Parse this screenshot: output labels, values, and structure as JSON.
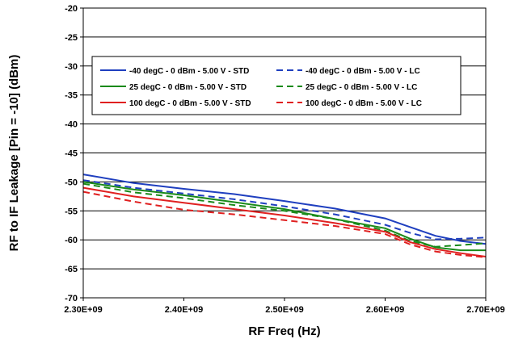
{
  "chart_data": {
    "type": "line",
    "title": "",
    "xlabel": "RF Freq (Hz)",
    "ylabel": "RF to IF Leakage [Pin = -10] (dBm)",
    "xlim": [
      2300000000,
      2700000000
    ],
    "ylim": [
      -70,
      -20
    ],
    "x_tick_labels": [
      "2.30E+09",
      "2.40E+09",
      "2.50E+09",
      "2.60E+09",
      "2.70E+09"
    ],
    "y_tick_labels": [
      "-20",
      "-25",
      "-30",
      "-35",
      "-40",
      "-45",
      "-50",
      "-55",
      "-60",
      "-65",
      "-70"
    ],
    "grid": "horizontal",
    "legend_position": "upper-center",
    "x": [
      2300000000,
      2350000000,
      2400000000,
      2450000000,
      2500000000,
      2550000000,
      2600000000,
      2625000000,
      2650000000,
      2675000000,
      2700000000
    ],
    "series": [
      {
        "name": "-40 degC - 0 dBm - 5.00 V - STD",
        "color": "#1f3fbf",
        "dash": "solid",
        "values": [
          -48.7,
          -50.2,
          -51.2,
          -52.1,
          -53.3,
          -54.6,
          -56.3,
          -57.8,
          -59.3,
          -60.2,
          -60.7
        ]
      },
      {
        "name": "-40 degC - 0 dBm - 5.00 V - LC",
        "color": "#1f3fbf",
        "dash": "dashed",
        "values": [
          -49.7,
          -51.0,
          -52.0,
          -53.0,
          -54.2,
          -55.6,
          -57.4,
          -58.8,
          -59.9,
          -59.8,
          -59.6
        ]
      },
      {
        "name": "25 degC - 0 dBm - 5.00 V - STD",
        "color": "#1a8a1a",
        "dash": "solid",
        "values": [
          -50.0,
          -51.3,
          -52.3,
          -53.5,
          -54.7,
          -56.4,
          -58.0,
          -59.8,
          -61.3,
          -61.8,
          -61.8
        ]
      },
      {
        "name": "25 degC - 0 dBm - 5.00 V - LC",
        "color": "#1a8a1a",
        "dash": "dashed",
        "values": [
          -50.3,
          -51.8,
          -52.8,
          -54.0,
          -55.0,
          -56.4,
          -58.4,
          -60.2,
          -61.2,
          -60.9,
          -60.6
        ]
      },
      {
        "name": "100 degC - 0 dBm - 5.00 V - STD",
        "color": "#e02020",
        "dash": "solid",
        "values": [
          -51.0,
          -52.5,
          -53.6,
          -54.7,
          -55.8,
          -57.1,
          -58.6,
          -60.4,
          -61.6,
          -62.3,
          -62.9
        ]
      },
      {
        "name": "100 degC - 0 dBm - 5.00 V - LC",
        "color": "#e02020",
        "dash": "dashed",
        "values": [
          -51.7,
          -53.4,
          -54.8,
          -55.6,
          -56.6,
          -57.6,
          -59.0,
          -60.8,
          -62.0,
          -62.6,
          -63.0
        ]
      }
    ]
  }
}
